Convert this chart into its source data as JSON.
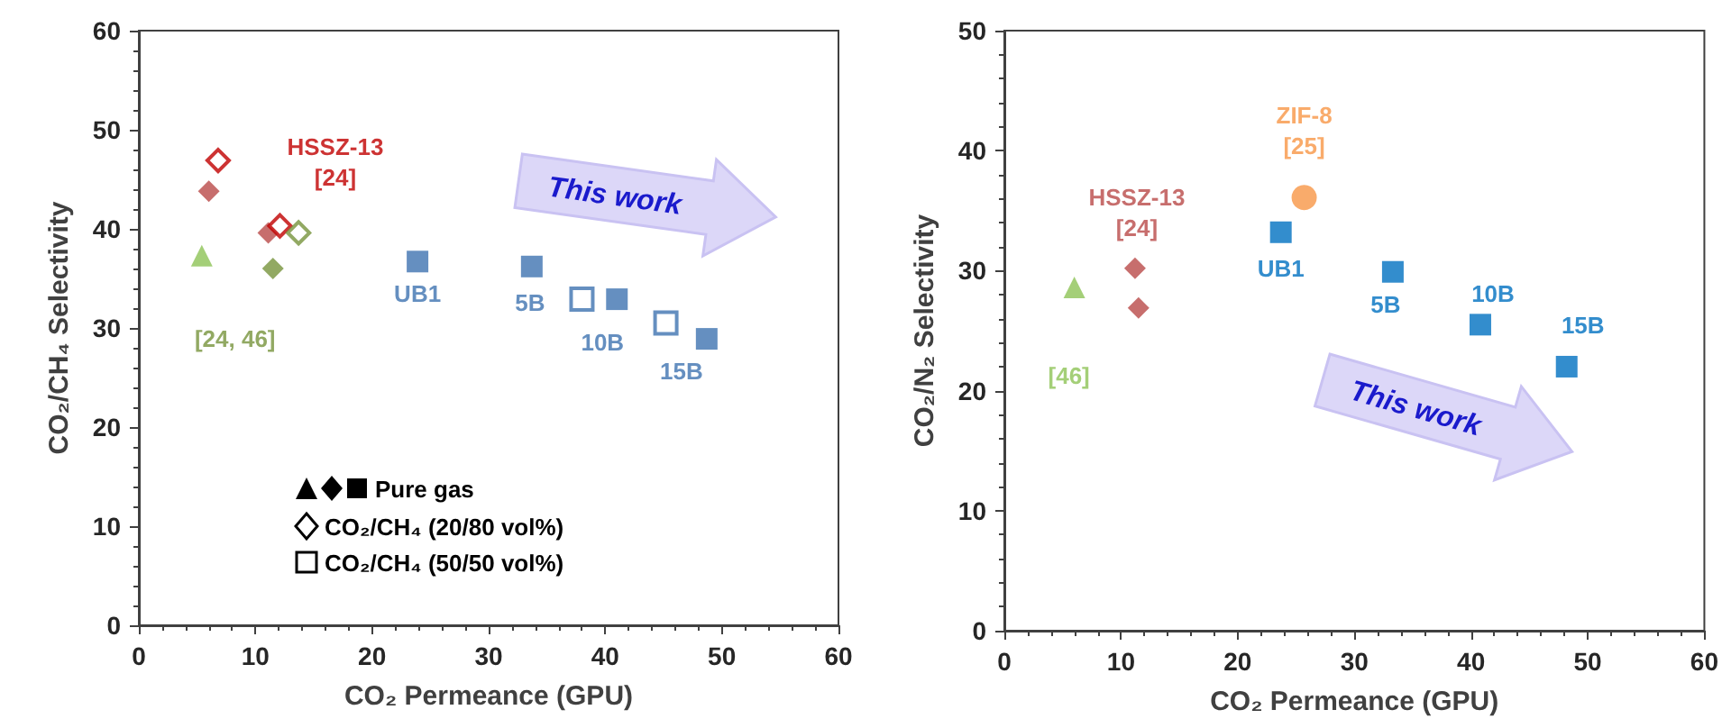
{
  "chart_data": [
    {
      "type": "scatter",
      "xlabel": "CO₂ Permeance (GPU)",
      "ylabel": "CO₂/CH₄ Selectivity",
      "xlim": [
        0,
        60
      ],
      "xticks": [
        0,
        10,
        20,
        30,
        40,
        50,
        60
      ],
      "ylim": [
        0,
        60
      ],
      "yticks": [
        0,
        10,
        20,
        30,
        40,
        50,
        60
      ],
      "grid": false,
      "series": [
        {
          "marker": "triangle",
          "color": "#8dc356",
          "x": [
            5.4
          ],
          "values": [
            37.3
          ]
        },
        {
          "marker": "diamond",
          "color": "#b94a48",
          "x": [
            6.0,
            11.1
          ],
          "values": [
            43.8,
            39.6
          ]
        },
        {
          "name": "[24, 46]",
          "marker": "diamond",
          "color": "#77933c",
          "x": [
            11.5
          ],
          "values": [
            36.0
          ]
        },
        {
          "name": "UB1",
          "marker": "square",
          "color": "#3f73b0",
          "x": [
            23.9
          ],
          "values": [
            36.7
          ]
        },
        {
          "name": "5B",
          "marker": "square",
          "color": "#3f73b0",
          "x": [
            33.7
          ],
          "values": [
            36.2
          ]
        },
        {
          "name": "10B",
          "marker": "square",
          "color": "#3f73b0",
          "x": [
            41.0
          ],
          "values": [
            32.9
          ]
        },
        {
          "name": "15B",
          "marker": "square",
          "color": "#3f73b0",
          "x": [
            48.7
          ],
          "values": [
            28.9
          ]
        },
        {
          "name": "HSSZ-13\n[24]",
          "marker": "diamond-open",
          "color": "#c00000",
          "x": [
            6.8
          ],
          "values": [
            46.9
          ]
        },
        {
          "marker": "diamond-open",
          "colors": [
            "#c00000",
            "#77933c"
          ],
          "x": [
            12.1,
            13.7
          ],
          "values": [
            40.3,
            39.6
          ]
        },
        {
          "marker": "square-open",
          "color": "#3f73b0",
          "x": [
            38.0,
            45.2
          ],
          "values": [
            32.9,
            30.5
          ]
        }
      ],
      "annotations": [
        "This work",
        "Pure gas",
        "CO₂/CH₄ (20/80 vol%)",
        "CO₂/CH₄ (50/50 vol%)"
      ]
    },
    {
      "type": "scatter",
      "xlabel": "CO₂ Permeance (GPU)",
      "ylabel": "CO₂/N₂ Selectivity",
      "xlim": [
        0,
        60
      ],
      "xticks": [
        0,
        10,
        20,
        30,
        40,
        50,
        60
      ],
      "ylim": [
        0,
        50
      ],
      "yticks": [
        0,
        10,
        20,
        30,
        40,
        50
      ],
      "grid": false,
      "series": [
        {
          "name": "[46]",
          "marker": "triangle",
          "color": "#8dc356",
          "x": [
            6.0
          ],
          "values": [
            28.6
          ]
        },
        {
          "name": "HSSZ-13\n[24]",
          "marker": "diamond",
          "color": "#b94a48",
          "x": [
            11.2,
            11.5
          ],
          "values": [
            30.2,
            26.9
          ]
        },
        {
          "name": "ZIF-8\n[25]",
          "marker": "circle",
          "color": "#f79646",
          "x": [
            25.7
          ],
          "values": [
            36.1
          ]
        },
        {
          "name": "UB1",
          "marker": "square",
          "color": "#0070c0",
          "x": [
            23.7
          ],
          "values": [
            33.2
          ]
        },
        {
          "name": "5B",
          "marker": "square",
          "color": "#0070c0",
          "x": [
            33.3
          ],
          "values": [
            29.9
          ]
        },
        {
          "name": "10B",
          "marker": "square",
          "color": "#0070c0",
          "x": [
            40.8
          ],
          "values": [
            25.5
          ]
        },
        {
          "name": "15B",
          "marker": "square",
          "color": "#0070c0",
          "x": [
            48.2
          ],
          "values": [
            22.0
          ]
        }
      ],
      "annotations": [
        "This work"
      ]
    }
  ]
}
